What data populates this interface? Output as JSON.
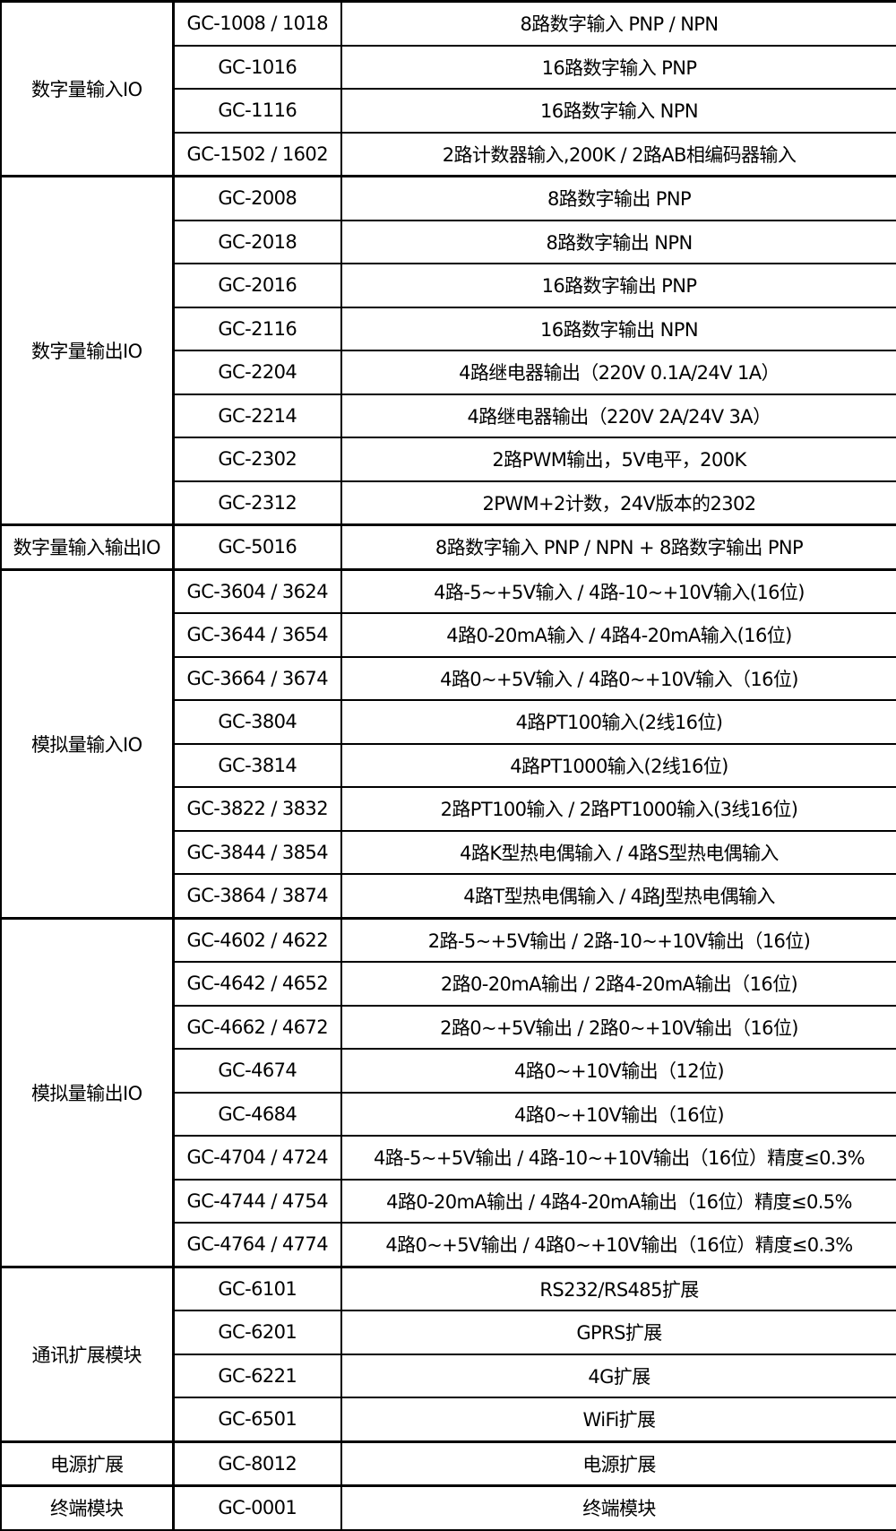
{
  "groups": [
    {
      "category": "数字量输入IO",
      "rows": [
        {
          "model": "GC-1008 / 1018",
          "description": "8路数字输入 PNP / NPN"
        },
        {
          "model": "GC-1016",
          "description": "16路数字输入 PNP"
        },
        {
          "model": "GC-1116",
          "description": "16路数字输入 NPN"
        },
        {
          "model": "GC-1502 / 1602",
          "description": "2路计数器输入,200K / 2路AB相编码器输入"
        }
      ]
    },
    {
      "category": "数字量输出IO",
      "rows": [
        {
          "model": "GC-2008",
          "description": "8路数字输出 PNP"
        },
        {
          "model": "GC-2018",
          "description": "8路数字输出 NPN"
        },
        {
          "model": "GC-2016",
          "description": "16路数字输出 PNP"
        },
        {
          "model": "GC-2116",
          "description": "16路数字输出 NPN"
        },
        {
          "model": "GC-2204",
          "description": "4路继电器输出（220V 0.1A/24V 1A）"
        },
        {
          "model": "GC-2214",
          "description": "4路继电器输出（220V 2A/24V 3A）"
        },
        {
          "model": "GC-2302",
          "description": "2路PWM输出，5V电平，200K"
        },
        {
          "model": "GC-2312",
          "description": "2PWM+2计数，24V版本的2302"
        }
      ]
    },
    {
      "category": "数字量输入输出IO",
      "rows": [
        {
          "model": "GC-5016",
          "description": "8路数字输入 PNP / NPN + 8路数字输出 PNP"
        }
      ]
    },
    {
      "category": "模拟量输入IO",
      "rows": [
        {
          "model": "GC-3604 / 3624",
          "description": "4路-5~+5V输入 / 4路-10~+10V输入(16位)"
        },
        {
          "model": "GC-3644 / 3654",
          "description": "4路0-20mA输入 / 4路4-20mA输入(16位)"
        },
        {
          "model": "GC-3664 / 3674",
          "description": "4路0~+5V输入 / 4路0~+10V输入（16位)"
        },
        {
          "model": "GC-3804",
          "description": "4路PT100输入(2线16位)"
        },
        {
          "model": "GC-3814",
          "description": "4路PT1000输入(2线16位)"
        },
        {
          "model": "GC-3822 / 3832",
          "description": "2路PT100输入 / 2路PT1000输入(3线16位)"
        },
        {
          "model": "GC-3844 / 3854",
          "description": "4路K型热电偶输入 / 4路S型热电偶输入"
        },
        {
          "model": "GC-3864 / 3874",
          "description": "4路T型热电偶输入 / 4路J型热电偶输入"
        }
      ]
    },
    {
      "category": "模拟量输出IO",
      "rows": [
        {
          "model": "GC-4602 / 4622",
          "description": "2路-5~+5V输出 / 2路-10~+10V输出（16位)"
        },
        {
          "model": "GC-4642 / 4652",
          "description": "2路0-20mA输出 / 2路4-20mA输出（16位)"
        },
        {
          "model": "GC-4662 / 4672",
          "description": "2路0~+5V输出 / 2路0~+10V输出（16位)"
        },
        {
          "model": "GC-4674",
          "description": "4路0~+10V输出（12位)"
        },
        {
          "model": "GC-4684",
          "description": "4路0~+10V输出（16位)"
        },
        {
          "model": "GC-4704 / 4724",
          "description": "4路-5~+5V输出 / 4路-10~+10V输出（16位）精度≤0.3%"
        },
        {
          "model": "GC-4744 / 4754",
          "description": "4路0-20mA输出 / 4路4-20mA输出（16位）精度≤0.5%"
        },
        {
          "model": "GC-4764 / 4774",
          "description": "4路0~+5V输出 / 4路0~+10V输出（16位）精度≤0.3%"
        }
      ]
    },
    {
      "category": "通讯扩展模块",
      "rows": [
        {
          "model": "GC-6101",
          "description": "RS232/RS485扩展"
        },
        {
          "model": "GC-6201",
          "description": "GPRS扩展"
        },
        {
          "model": "GC-6221",
          "description": "4G扩展"
        },
        {
          "model": "GC-6501",
          "description": "WiFi扩展"
        }
      ]
    },
    {
      "category": "电源扩展",
      "rows": [
        {
          "model": "GC-8012",
          "description": "电源扩展"
        }
      ]
    },
    {
      "category": "终端模块",
      "rows": [
        {
          "model": "GC-0001",
          "description": "终端模块"
        }
      ]
    }
  ]
}
